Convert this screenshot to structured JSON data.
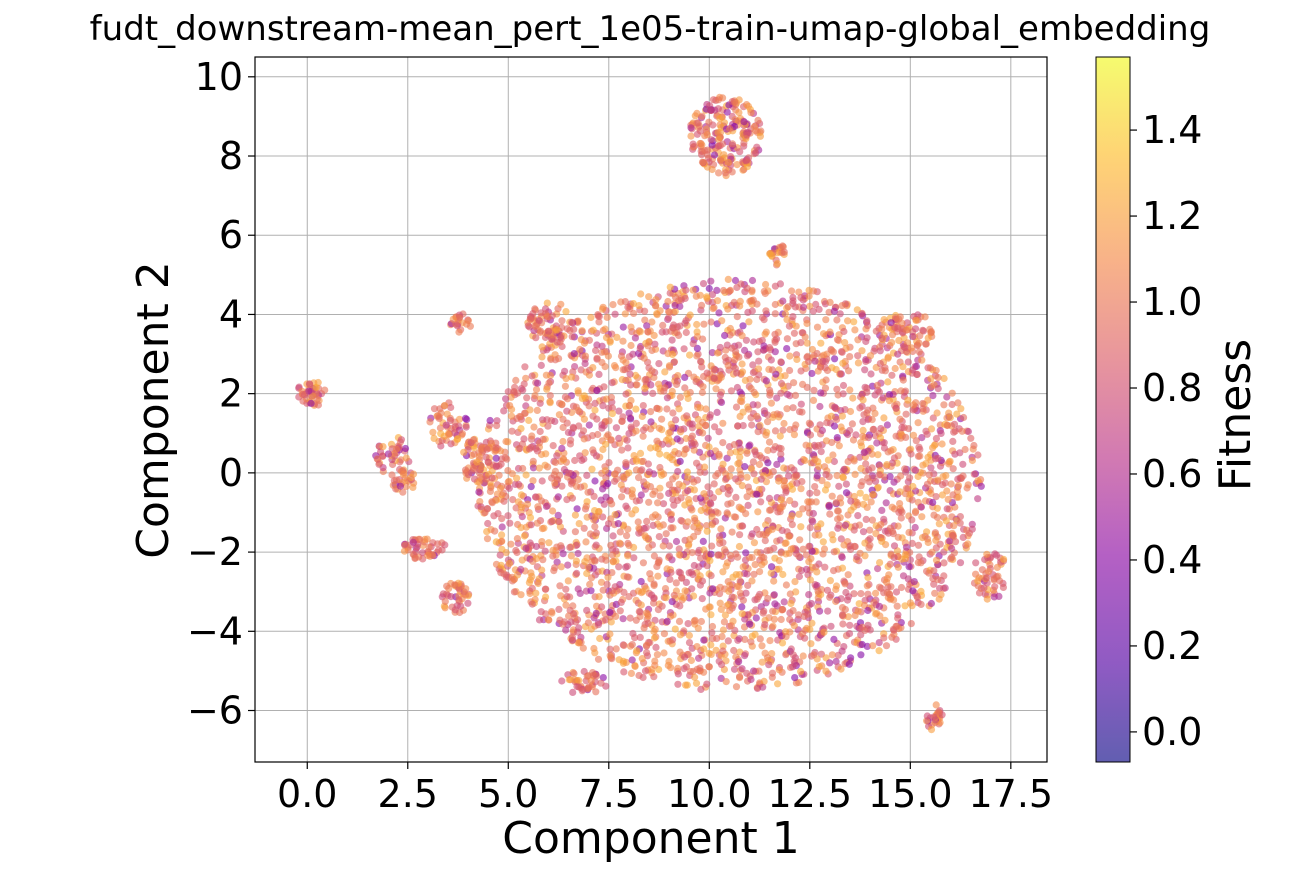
{
  "chart_data": {
    "type": "scatter",
    "title": "fudt_downstream-mean_pert_1e05-train-umap-global_embedding",
    "xlabel": "Component 1",
    "ylabel": "Component 2",
    "xlim": [
      -1.3,
      18.4
    ],
    "ylim": [
      -7.3,
      10.5
    ],
    "xticks": [
      0.0,
      2.5,
      5.0,
      7.5,
      10.0,
      12.5,
      15.0,
      17.5
    ],
    "xtick_labels": [
      "0.0",
      "2.5",
      "5.0",
      "7.5",
      "10.0",
      "12.5",
      "15.0",
      "17.5"
    ],
    "yticks": [
      -6,
      -4,
      -2,
      0,
      2,
      4,
      6,
      8,
      10
    ],
    "ytick_labels": [
      "−6",
      "−4",
      "−2",
      "0",
      "2",
      "4",
      "6",
      "8",
      "10"
    ],
    "grid": true,
    "colormap": "plasma",
    "point_alpha": 0.6,
    "colorbar": {
      "label": "Fitness",
      "range": [
        -0.07,
        1.57
      ],
      "ticks": [
        0.0,
        0.2,
        0.4,
        0.6,
        0.8,
        1.0,
        1.2,
        1.4
      ],
      "tick_labels": [
        "0.0",
        "0.2",
        "0.4",
        "0.6",
        "0.8",
        "1.0",
        "1.2",
        "1.4"
      ]
    },
    "typical_fitness": 1.0,
    "clusters": [
      {
        "center": [
          10.5,
          -0.3
        ],
        "radius": [
          6.3,
          5.2
        ],
        "points": 3200
      },
      {
        "center": [
          10.4,
          8.5
        ],
        "radius": [
          0.9,
          1.0
        ],
        "points": 200
      },
      {
        "center": [
          0.1,
          2.0
        ],
        "radius": [
          0.35,
          0.35
        ],
        "points": 40
      },
      {
        "center": [
          2.2,
          0.4
        ],
        "radius": [
          0.5,
          0.5
        ],
        "points": 40
      },
      {
        "center": [
          2.4,
          -0.2
        ],
        "radius": [
          0.3,
          0.3
        ],
        "points": 25
      },
      {
        "center": [
          2.9,
          -1.9
        ],
        "radius": [
          0.55,
          0.3
        ],
        "points": 45
      },
      {
        "center": [
          3.8,
          3.8
        ],
        "radius": [
          0.3,
          0.25
        ],
        "points": 20
      },
      {
        "center": [
          3.7,
          -3.2
        ],
        "radius": [
          0.35,
          0.45
        ],
        "points": 40
      },
      {
        "center": [
          3.5,
          1.2
        ],
        "radius": [
          0.5,
          0.6
        ],
        "points": 50
      },
      {
        "center": [
          6.1,
          3.8
        ],
        "radius": [
          0.7,
          0.5
        ],
        "points": 70
      },
      {
        "center": [
          11.7,
          5.5
        ],
        "radius": [
          0.2,
          0.3
        ],
        "points": 20
      },
      {
        "center": [
          14.9,
          3.6
        ],
        "radius": [
          0.7,
          0.5
        ],
        "points": 60
      },
      {
        "center": [
          17.0,
          -2.6
        ],
        "radius": [
          0.45,
          0.6
        ],
        "points": 50
      },
      {
        "center": [
          15.6,
          -6.2
        ],
        "radius": [
          0.2,
          0.35
        ],
        "points": 25
      },
      {
        "center": [
          6.9,
          -5.3
        ],
        "radius": [
          0.6,
          0.3
        ],
        "points": 40
      },
      {
        "center": [
          4.3,
          0.3
        ],
        "radius": [
          0.5,
          0.6
        ],
        "points": 60
      }
    ]
  }
}
